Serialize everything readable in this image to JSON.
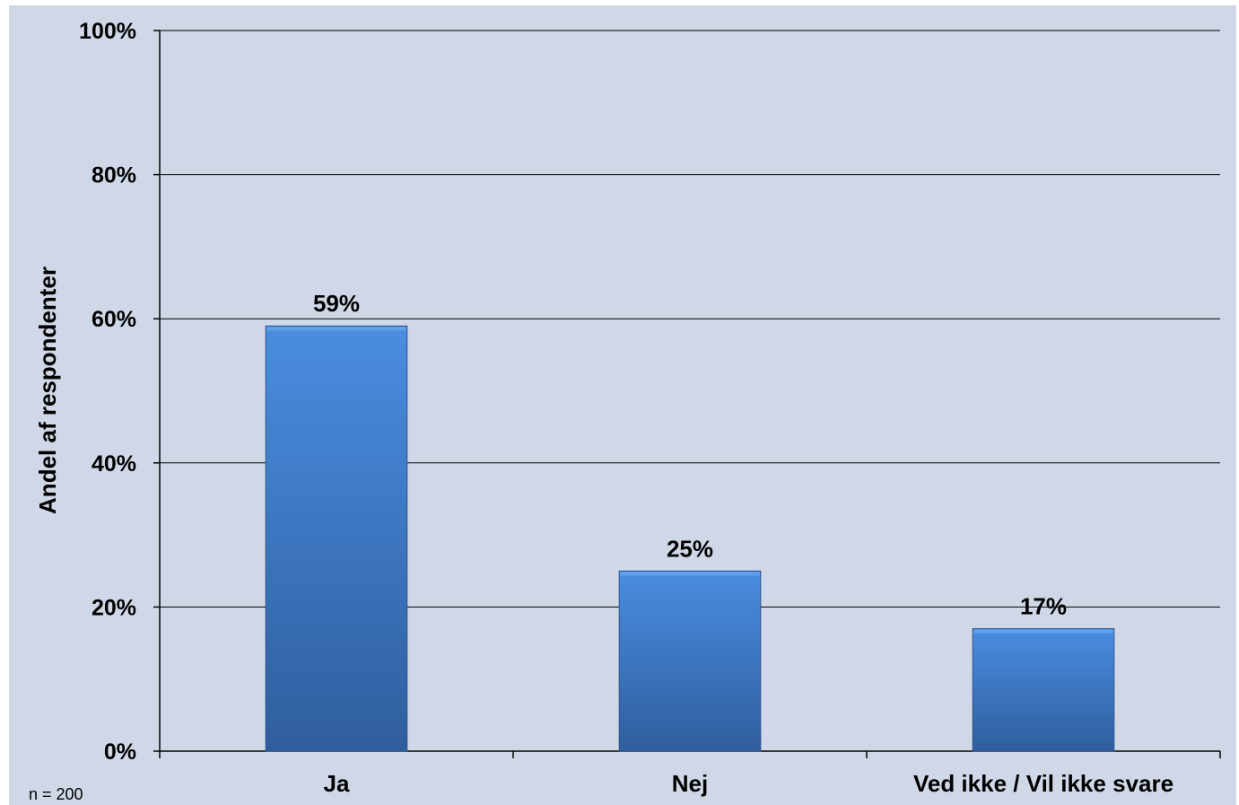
{
  "chart_data": {
    "type": "bar",
    "categories": [
      "Ja",
      "Nej",
      "Ved ikke / Vil ikke svare"
    ],
    "values": [
      59,
      25,
      17
    ],
    "data_labels": [
      "59%",
      "25%",
      "17%"
    ],
    "ylabel": "Andel af respondenter",
    "xlabel": "",
    "ylim": [
      0,
      100
    ],
    "yticks": [
      0,
      20,
      40,
      60,
      80,
      100
    ],
    "ytick_labels": [
      "0%",
      "20%",
      "40%",
      "60%",
      "80%",
      "100%"
    ],
    "grid": true,
    "note": "n = 200",
    "colors": {
      "background": "#d0d8e8",
      "bar_top": "#4a8de0",
      "bar_bottom": "#2f5e9e",
      "gridline": "#000000"
    }
  }
}
